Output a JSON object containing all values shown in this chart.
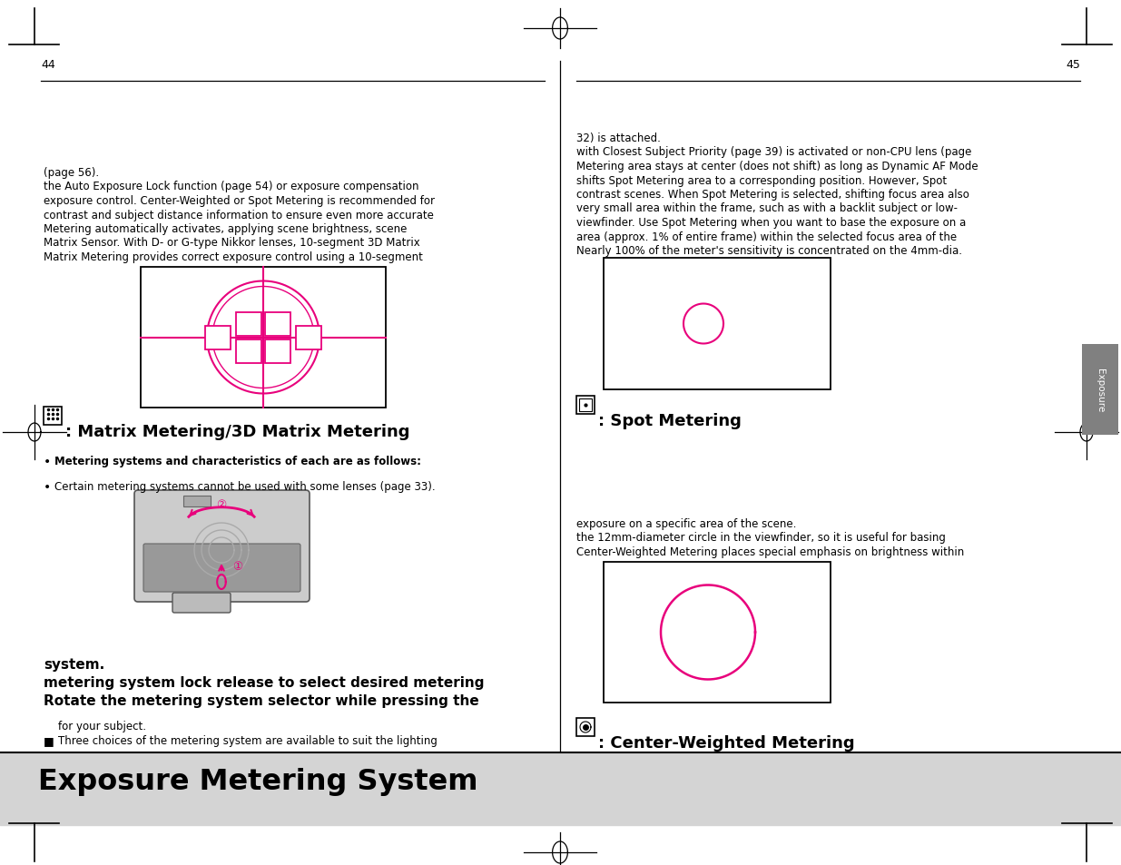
{
  "title": "Exposure Metering System",
  "title_bar_color": "#d4d4d4",
  "bg_color": "#ffffff",
  "pink_color": "#e8007c",
  "page_left": "44",
  "page_right": "45",
  "bullet1_line1": "Three choices of the metering system are available to suit the lighting",
  "bullet1_line2": "for your subject.",
  "bold_line1": "Rotate the metering system selector while pressing the",
  "bold_line2": "metering system lock release to select desired metering",
  "bold_line3": "system.",
  "bullet2a": "Certain metering systems cannot be used with some lenses (page 33).",
  "bullet2b": "Metering systems and characteristics of each are as follows:",
  "matrix_title_suffix": ": Matrix Metering/3D Matrix Metering",
  "matrix_text_lines": [
    "Matrix Metering provides correct exposure control using a 10-segment",
    "Matrix Sensor. With D- or G-type Nikkor lenses, 10-segment 3D Matrix",
    "Metering automatically activates, applying scene brightness, scene",
    "contrast and subject distance information to ensure even more accurate",
    "exposure control. Center-Weighted or Spot Metering is recommended for",
    "the Auto Exposure Lock function (page 54) or exposure compensation",
    "(page 56)."
  ],
  "cw_title_suffix": ": Center-Weighted Metering",
  "cw_text_lines": [
    "Center-Weighted Metering places special emphasis on brightness within",
    "the 12mm-diameter circle in the viewfinder, so it is useful for basing",
    "exposure on a specific area of the scene."
  ],
  "spot_title_suffix": ": Spot Metering",
  "spot_text_lines": [
    "Nearly 100% of the meter's sensitivity is concentrated on the 4mm-dia.",
    "area (approx. 1% of entire frame) within the selected focus area of the",
    "viewfinder. Use Spot Metering when you want to base the exposure on a",
    "very small area within the frame, such as with a backlit subject or low-",
    "contrast scenes. When Spot Metering is selected, shifting focus area also",
    "shifts Spot Metering area to a corresponding position. However, Spot",
    "Metering area stays at center (does not shift) as long as Dynamic AF Mode",
    "with Closest Subject Priority (page 39) is activated or non-CPU lens (page",
    "32) is attached."
  ],
  "exposure_tab_color": "#808080"
}
